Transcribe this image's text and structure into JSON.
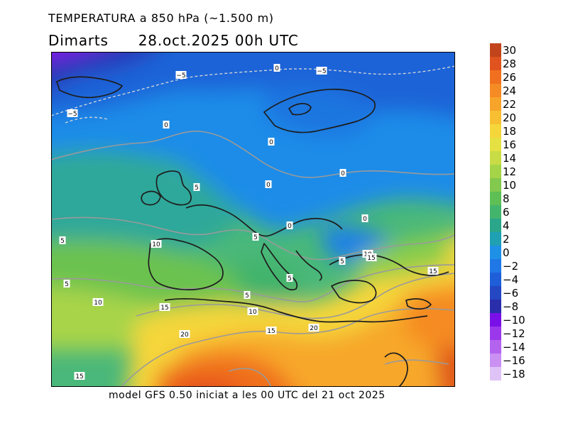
{
  "header": {
    "title": "TEMPERATURA a 850 hPa (~1.500 m)",
    "day": "Dimarts",
    "datetime": "28.oct.2025 00h UTC"
  },
  "footer": {
    "model_info": "model GFS 0.50 iniciat a les 00 UTC del 21 oct 2025"
  },
  "legend": {
    "levels": [
      30,
      28,
      26,
      24,
      22,
      20,
      18,
      16,
      14,
      12,
      10,
      8,
      6,
      4,
      2,
      0,
      -2,
      -4,
      -6,
      -8,
      -10,
      -12,
      -14,
      -16,
      -18
    ],
    "level_labels": [
      "30",
      "28",
      "26",
      "24",
      "22",
      "20",
      "18",
      "16",
      "14",
      "12",
      "10",
      "8",
      "6",
      "4",
      "2",
      "0",
      "−2",
      "−4",
      "−6",
      "−8",
      "−10",
      "−12",
      "−14",
      "−16",
      "−18"
    ],
    "colors": [
      "#c1441b",
      "#e0531e",
      "#f0701f",
      "#f58b24",
      "#f7a42b",
      "#f8bf33",
      "#f5d63b",
      "#e5e142",
      "#c9dc45",
      "#a6d448",
      "#82c94d",
      "#5ebf55",
      "#43b46c",
      "#2aa68a",
      "#1fa0b3",
      "#1e90e6",
      "#1f78e6",
      "#1e5fd9",
      "#2447c4",
      "#2a2eaa",
      "#7a10e8",
      "#9b38ec",
      "#b463ef",
      "#ca90f2",
      "#e0c3f6"
    ]
  },
  "map": {
    "contour_labels": [
      {
        "text": "-5"
      },
      {
        "text": "0"
      },
      {
        "text": "-5"
      },
      {
        "text": "-5"
      },
      {
        "text": "0"
      },
      {
        "text": "0"
      },
      {
        "text": "5"
      },
      {
        "text": "0"
      },
      {
        "text": "0"
      },
      {
        "text": "0"
      },
      {
        "text": "0"
      },
      {
        "text": "5"
      },
      {
        "text": "5"
      },
      {
        "text": "10"
      },
      {
        "text": "10"
      },
      {
        "text": "15"
      },
      {
        "text": "5"
      },
      {
        "text": "5"
      },
      {
        "text": "15"
      },
      {
        "text": "5"
      },
      {
        "text": "5"
      },
      {
        "text": "10"
      },
      {
        "text": "15"
      },
      {
        "text": "10"
      },
      {
        "text": "20"
      },
      {
        "text": "15"
      },
      {
        "text": "20"
      },
      {
        "text": "15"
      }
    ]
  }
}
